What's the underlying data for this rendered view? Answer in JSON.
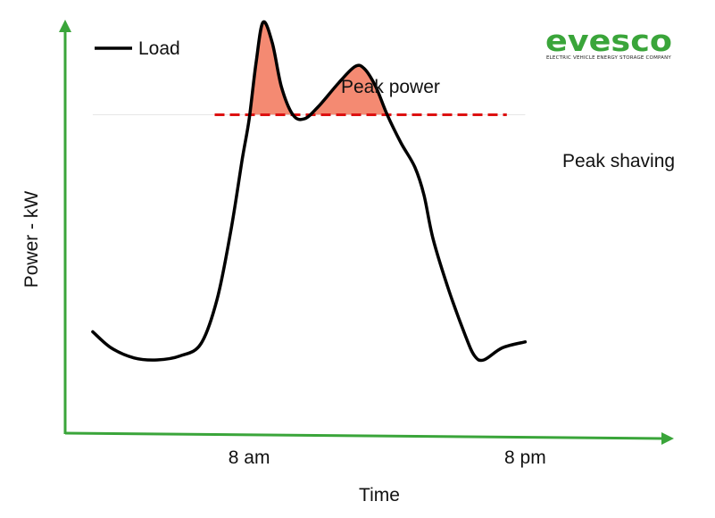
{
  "chart_data": {
    "type": "line",
    "title": "",
    "xlabel": "Time",
    "ylabel": "Power - kW",
    "x_ticks": [
      {
        "label": "8 am",
        "x": 8
      },
      {
        "label": "8 pm",
        "x": 20
      }
    ],
    "xlim": [
      0,
      26
    ],
    "ylim": [
      0,
      100
    ],
    "series": [
      {
        "name": "Load",
        "color": "#000000",
        "points": [
          [
            1.2,
            25
          ],
          [
            2.0,
            21
          ],
          [
            3.0,
            18.5
          ],
          [
            4.0,
            18
          ],
          [
            5.0,
            19
          ],
          [
            5.9,
            22
          ],
          [
            6.6,
            33
          ],
          [
            7.2,
            50
          ],
          [
            7.7,
            68
          ],
          [
            8.0,
            78
          ],
          [
            8.3,
            92
          ],
          [
            8.6,
            102
          ],
          [
            9.0,
            97
          ],
          [
            9.4,
            86
          ],
          [
            9.9,
            79
          ],
          [
            10.4,
            78
          ],
          [
            11.0,
            81
          ],
          [
            11.9,
            87
          ],
          [
            12.6,
            91
          ],
          [
            13.0,
            90.5
          ],
          [
            13.5,
            86
          ],
          [
            14.0,
            79
          ],
          [
            14.6,
            72
          ],
          [
            15.2,
            66
          ],
          [
            15.6,
            59
          ],
          [
            16.0,
            48
          ],
          [
            16.7,
            35
          ],
          [
            17.4,
            24
          ],
          [
            17.8,
            19
          ],
          [
            18.2,
            18
          ],
          [
            19.0,
            21
          ],
          [
            20.0,
            22.5
          ]
        ]
      }
    ],
    "threshold": {
      "name": "Peak shaving",
      "value": 79,
      "x_range": [
        6.5,
        19.2
      ],
      "color": "#dd1111",
      "style": "dashed"
    },
    "shaded_region": {
      "name": "Peak power",
      "color": "#f48a72",
      "above": 79
    },
    "legend": {
      "position": "top-left"
    },
    "grid": false,
    "axis_color": "#3aa53a"
  },
  "logo": {
    "wordmark": "evesco",
    "tagline": "ELECTRIC VEHICLE ENERGY STORAGE COMPANY",
    "color": "#3aa53a"
  }
}
